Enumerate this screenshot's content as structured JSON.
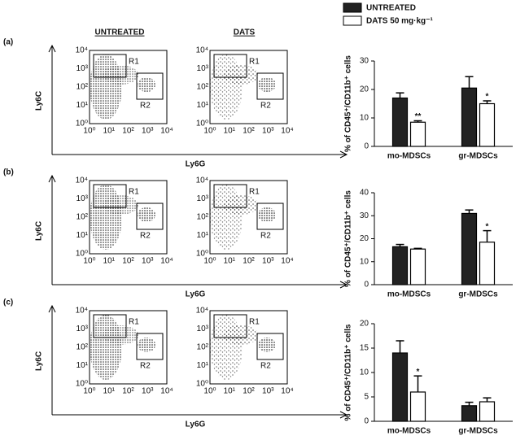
{
  "chart_data": [
    {
      "type": "bar",
      "categories": [
        "mo-MDSCs",
        "gr-MDSCs"
      ],
      "ylabel": "% of CD45⁺/CD11b⁺ cells",
      "ylim": [
        0,
        30
      ],
      "yticks": [
        0,
        10,
        20,
        30
      ],
      "series": [
        {
          "name": "UNTREATED",
          "color": "#222222",
          "values": [
            17,
            20.5
          ],
          "errors": [
            1.8,
            4
          ]
        },
        {
          "name": "DATS 50 mg·kg⁻¹",
          "color": "#ffffff",
          "values": [
            8.5,
            15
          ],
          "errors": [
            0.5,
            1
          ],
          "significance": [
            "**",
            "*"
          ]
        }
      ]
    },
    {
      "type": "bar",
      "categories": [
        "mo-MDSCs",
        "gr-MDSCs"
      ],
      "ylabel": "% of CD45⁺/CD11b⁺ cells",
      "ylim": [
        0,
        40
      ],
      "yticks": [
        0,
        10,
        20,
        30,
        40
      ],
      "series": [
        {
          "name": "UNTREATED",
          "color": "#222222",
          "values": [
            16.5,
            31
          ],
          "errors": [
            1,
            1.5
          ]
        },
        {
          "name": "DATS 50 mg·kg⁻¹",
          "color": "#ffffff",
          "values": [
            15.5,
            18.5
          ],
          "errors": [
            0.3,
            5
          ],
          "significance": [
            null,
            "*"
          ]
        }
      ]
    },
    {
      "type": "bar",
      "categories": [
        "mo-MDSCs",
        "gr-MDSCs"
      ],
      "ylabel": "% of CD45⁺/CD11b⁺ cells",
      "ylim": [
        0,
        20
      ],
      "yticks": [
        0,
        5,
        10,
        15,
        20
      ],
      "series": [
        {
          "name": "UNTREATED",
          "color": "#222222",
          "values": [
            14,
            3.2
          ],
          "errors": [
            2.5,
            0.7
          ]
        },
        {
          "name": "DATS 50 mg·kg⁻¹",
          "color": "#ffffff",
          "values": [
            6,
            4
          ],
          "errors": [
            3.3,
            0.8
          ],
          "significance": [
            "*",
            null
          ]
        }
      ]
    }
  ],
  "flow": {
    "columns": [
      "UNTREATED",
      "DATS"
    ],
    "rows": [
      "(a)",
      "(b)",
      "(c)"
    ],
    "ylabel": "Ly6C",
    "xlabel": "Ly6G",
    "gates": [
      "R1",
      "R2"
    ],
    "ticks": [
      "10⁰",
      "10¹",
      "10²",
      "10³",
      "10⁴"
    ]
  }
}
